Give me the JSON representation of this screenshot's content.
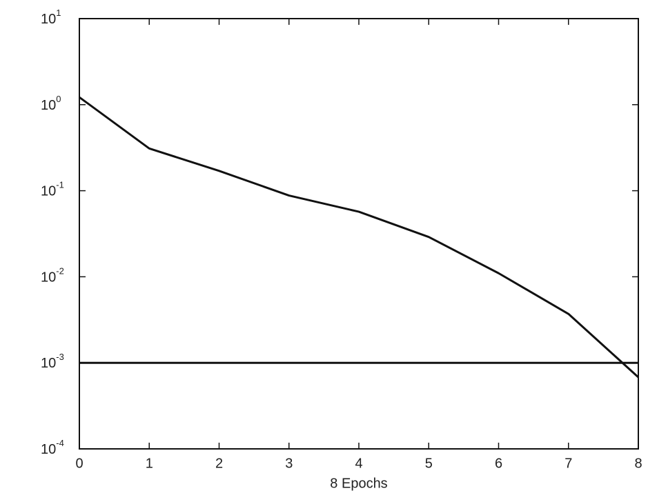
{
  "chart_data": {
    "type": "line",
    "x_label": "8 Epochs",
    "x": [
      0,
      1,
      2,
      3,
      4,
      5,
      6,
      7,
      8
    ],
    "series": [
      {
        "color": "#111111",
        "values": [
          1.22,
          0.31,
          0.17,
          0.088,
          0.057,
          0.029,
          0.011,
          0.0037,
          0.00068
        ]
      },
      {
        "color": "#111111",
        "values": [
          0.001,
          0.001,
          0.001,
          0.001,
          0.001,
          0.001,
          0.001,
          0.001,
          0.001
        ]
      }
    ],
    "xlim": [
      0,
      8
    ],
    "xticks": [
      0,
      1,
      2,
      3,
      4,
      5,
      6,
      7,
      8
    ],
    "ylim": [
      0.0001,
      10
    ],
    "log_y": true,
    "yticks": [
      {
        "value": 0.0001,
        "label": "10",
        "exponent": "-4"
      },
      {
        "value": 0.001,
        "label": "10",
        "exponent": "-3"
      },
      {
        "value": 0.01,
        "label": "10",
        "exponent": "-2"
      },
      {
        "value": 0.1,
        "label": "10",
        "exponent": "-1"
      },
      {
        "value": 1,
        "label": "10",
        "exponent": "0"
      },
      {
        "value": 10,
        "label": "10",
        "exponent": "1"
      }
    ]
  }
}
